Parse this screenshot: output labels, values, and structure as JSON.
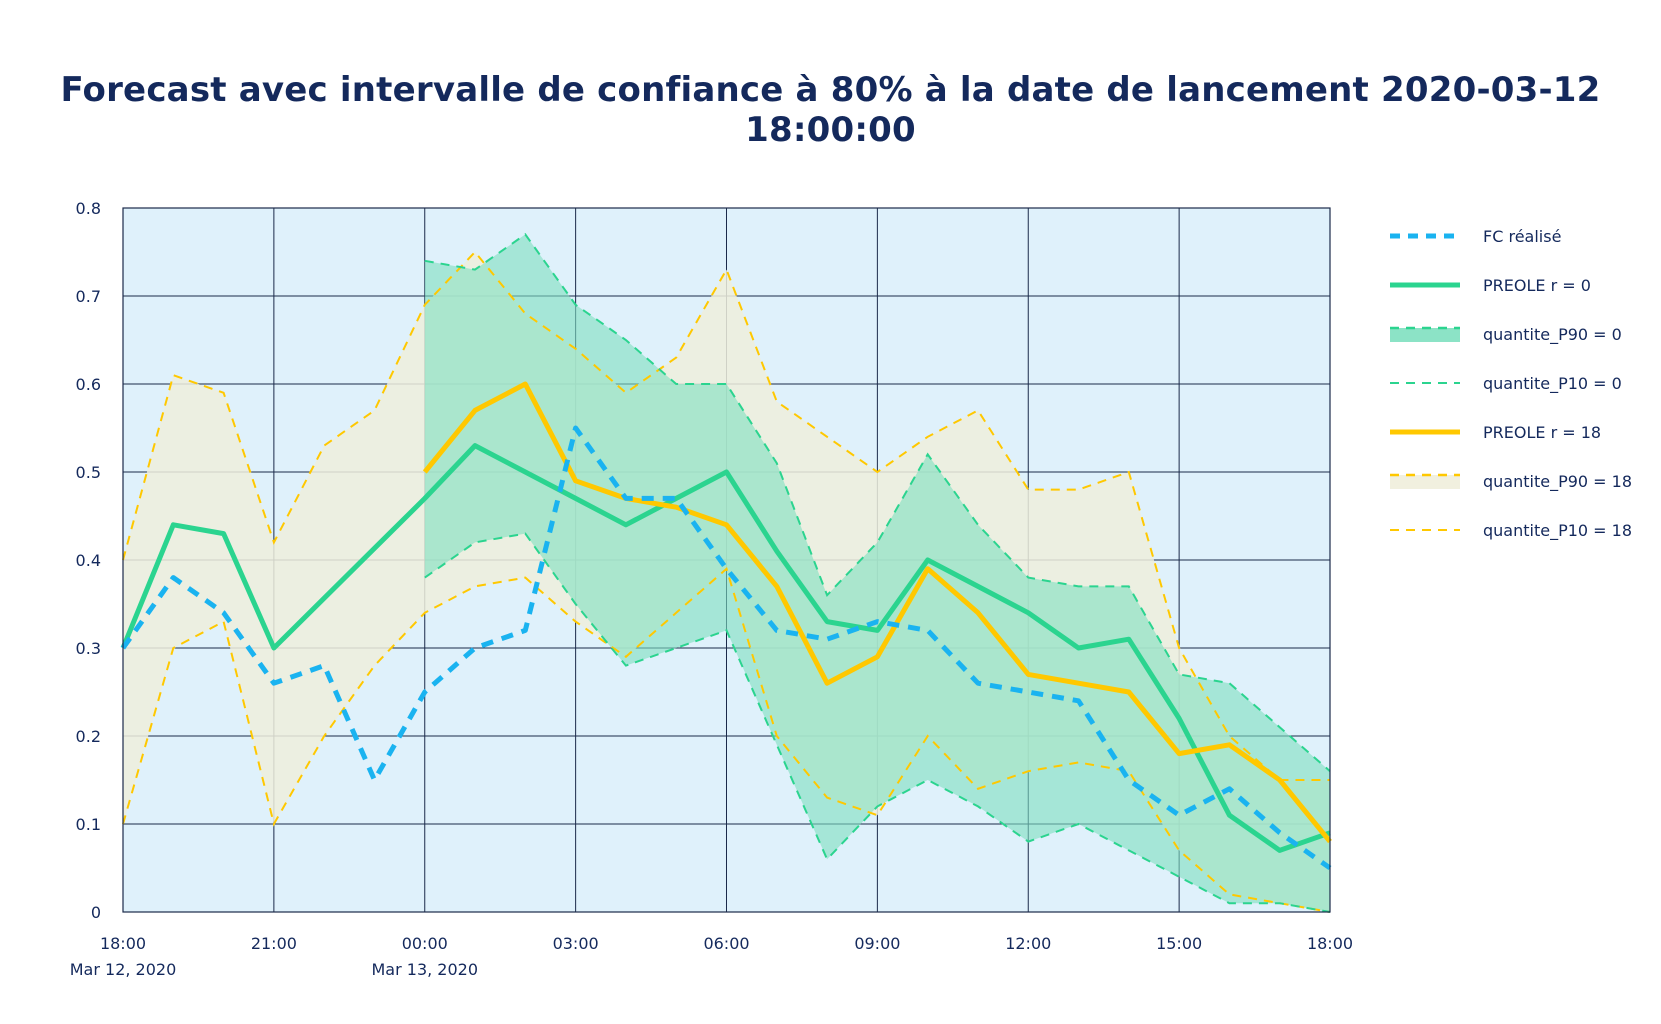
{
  "chart_data": {
    "type": "line",
    "title": "Forecast avec intervalle de confiance à 80% à la date de lancement 2020-03-12 18:00:00",
    "ylim": [
      0,
      0.8
    ],
    "yticks": [
      0,
      0.1,
      0.2,
      0.3,
      0.4,
      0.5,
      0.6,
      0.7,
      0.8
    ],
    "ytick_labels": [
      "0",
      "0.1",
      "0.2",
      "0.3",
      "0.4",
      "0.5",
      "0.6",
      "0.7",
      "0.8"
    ],
    "xlim": [
      "2020-03-12 18:00",
      "2020-03-13 18:00"
    ],
    "xticks": [
      {
        "t": "2020-03-12 18:00",
        "line1": "18:00",
        "line2": "Mar 12, 2020"
      },
      {
        "t": "2020-03-12 21:00",
        "line1": "21:00",
        "line2": ""
      },
      {
        "t": "2020-03-13 00:00",
        "line1": "00:00",
        "line2": "Mar 13, 2020"
      },
      {
        "t": "2020-03-13 03:00",
        "line1": "03:00",
        "line2": ""
      },
      {
        "t": "2020-03-13 06:00",
        "line1": "06:00",
        "line2": ""
      },
      {
        "t": "2020-03-13 09:00",
        "line1": "09:00",
        "line2": ""
      },
      {
        "t": "2020-03-13 12:00",
        "line1": "12:00",
        "line2": ""
      },
      {
        "t": "2020-03-13 15:00",
        "line1": "15:00",
        "line2": ""
      },
      {
        "t": "2020-03-13 18:00",
        "line1": "18:00",
        "line2": ""
      }
    ],
    "grid": true,
    "legend_position": "right",
    "colors": {
      "plot_bg": "#dff1fb",
      "grid": "#1b2a4a",
      "fc": "#1ab3f0",
      "preole0": "#2bd48f",
      "band0": "#7fe0c0",
      "preole18": "#ffc800",
      "band18": "#efeedc"
    },
    "series": [
      {
        "name": "FC réalisé",
        "key": "fc",
        "x": [
          "2020-03-12 18:00",
          "2020-03-12 19:00",
          "2020-03-12 20:00",
          "2020-03-12 21:00",
          "2020-03-12 22:00",
          "2020-03-12 23:00",
          "2020-03-13 00:00",
          "2020-03-13 01:00",
          "2020-03-13 02:00",
          "2020-03-13 03:00",
          "2020-03-13 04:00",
          "2020-03-13 05:00",
          "2020-03-13 06:00",
          "2020-03-13 07:00",
          "2020-03-13 08:00",
          "2020-03-13 09:00",
          "2020-03-13 10:00",
          "2020-03-13 11:00",
          "2020-03-13 12:00",
          "2020-03-13 13:00",
          "2020-03-13 14:00",
          "2020-03-13 15:00",
          "2020-03-13 16:00",
          "2020-03-13 17:00",
          "2020-03-13 18:00"
        ],
        "values": [
          0.3,
          0.38,
          0.34,
          0.26,
          0.28,
          0.15,
          0.25,
          0.3,
          0.32,
          0.55,
          0.47,
          0.47,
          0.39,
          0.32,
          0.31,
          0.33,
          0.32,
          0.26,
          0.25,
          0.24,
          0.15,
          0.11,
          0.14,
          0.09,
          0.05
        ]
      },
      {
        "name": "PREOLE r = 0",
        "key": "preole0",
        "x": [
          "2020-03-12 18:00",
          "2020-03-12 19:00",
          "2020-03-12 20:00",
          "2020-03-12 21:00",
          "2020-03-13 00:00",
          "2020-03-13 01:00",
          "2020-03-13 02:00",
          "2020-03-13 03:00",
          "2020-03-13 04:00",
          "2020-03-13 05:00",
          "2020-03-13 06:00",
          "2020-03-13 07:00",
          "2020-03-13 08:00",
          "2020-03-13 09:00",
          "2020-03-13 10:00",
          "2020-03-13 11:00",
          "2020-03-13 12:00",
          "2020-03-13 13:00",
          "2020-03-13 14:00",
          "2020-03-13 15:00",
          "2020-03-13 16:00",
          "2020-03-13 17:00",
          "2020-03-13 18:00"
        ],
        "values": [
          0.3,
          0.44,
          0.43,
          0.3,
          0.47,
          0.53,
          0.5,
          0.47,
          0.44,
          0.47,
          0.5,
          0.41,
          0.33,
          0.32,
          0.4,
          0.37,
          0.34,
          0.3,
          0.31,
          0.22,
          0.11,
          0.07,
          0.09
        ]
      },
      {
        "name": "quantite_P90 = 0",
        "key": "p90_0",
        "x": [
          "2020-03-13 00:00",
          "2020-03-13 01:00",
          "2020-03-13 02:00",
          "2020-03-13 03:00",
          "2020-03-13 04:00",
          "2020-03-13 05:00",
          "2020-03-13 06:00",
          "2020-03-13 07:00",
          "2020-03-13 08:00",
          "2020-03-13 09:00",
          "2020-03-13 10:00",
          "2020-03-13 11:00",
          "2020-03-13 12:00",
          "2020-03-13 13:00",
          "2020-03-13 14:00",
          "2020-03-13 15:00",
          "2020-03-13 16:00",
          "2020-03-13 17:00",
          "2020-03-13 18:00"
        ],
        "values": [
          0.74,
          0.73,
          0.77,
          0.69,
          0.65,
          0.6,
          0.6,
          0.51,
          0.36,
          0.42,
          0.52,
          0.44,
          0.38,
          0.37,
          0.37,
          0.27,
          0.26,
          0.21,
          0.16
        ]
      },
      {
        "name": "quantite_P10 = 0",
        "key": "p10_0",
        "x": [
          "2020-03-13 00:00",
          "2020-03-13 01:00",
          "2020-03-13 02:00",
          "2020-03-13 03:00",
          "2020-03-13 04:00",
          "2020-03-13 05:00",
          "2020-03-13 06:00",
          "2020-03-13 07:00",
          "2020-03-13 08:00",
          "2020-03-13 09:00",
          "2020-03-13 10:00",
          "2020-03-13 11:00",
          "2020-03-13 12:00",
          "2020-03-13 13:00",
          "2020-03-13 14:00",
          "2020-03-13 15:00",
          "2020-03-13 16:00",
          "2020-03-13 17:00",
          "2020-03-13 18:00"
        ],
        "values": [
          0.38,
          0.42,
          0.43,
          0.35,
          0.28,
          0.3,
          0.32,
          0.19,
          0.06,
          0.12,
          0.15,
          0.12,
          0.08,
          0.1,
          0.07,
          0.04,
          0.01,
          0.01,
          0.0
        ]
      },
      {
        "name": "PREOLE r = 18",
        "key": "preole18",
        "x": [
          "2020-03-13 00:00",
          "2020-03-13 01:00",
          "2020-03-13 02:00",
          "2020-03-13 03:00",
          "2020-03-13 04:00",
          "2020-03-13 05:00",
          "2020-03-13 06:00",
          "2020-03-13 07:00",
          "2020-03-13 08:00",
          "2020-03-13 09:00",
          "2020-03-13 10:00",
          "2020-03-13 11:00",
          "2020-03-13 12:00",
          "2020-03-13 13:00",
          "2020-03-13 14:00",
          "2020-03-13 15:00",
          "2020-03-13 16:00",
          "2020-03-13 17:00",
          "2020-03-13 18:00"
        ],
        "values": [
          0.5,
          0.57,
          0.6,
          0.49,
          0.47,
          0.46,
          0.44,
          0.37,
          0.26,
          0.29,
          0.39,
          0.34,
          0.27,
          0.26,
          0.25,
          0.18,
          0.19,
          0.15,
          0.08
        ]
      },
      {
        "name": "quantite_P90 = 18",
        "key": "p90_18",
        "x": [
          "2020-03-12 18:00",
          "2020-03-12 19:00",
          "2020-03-12 20:00",
          "2020-03-12 21:00",
          "2020-03-12 22:00",
          "2020-03-12 23:00",
          "2020-03-13 00:00",
          "2020-03-13 01:00",
          "2020-03-13 02:00",
          "2020-03-13 03:00",
          "2020-03-13 04:00",
          "2020-03-13 05:00",
          "2020-03-13 06:00",
          "2020-03-13 07:00",
          "2020-03-13 08:00",
          "2020-03-13 09:00",
          "2020-03-13 10:00",
          "2020-03-13 11:00",
          "2020-03-13 12:00",
          "2020-03-13 13:00",
          "2020-03-13 14:00",
          "2020-03-13 15:00",
          "2020-03-13 16:00",
          "2020-03-13 17:00",
          "2020-03-13 18:00"
        ],
        "values": [
          0.4,
          0.61,
          0.59,
          0.42,
          0.53,
          0.57,
          0.69,
          0.75,
          0.68,
          0.64,
          0.59,
          0.63,
          0.73,
          0.58,
          0.54,
          0.5,
          0.54,
          0.57,
          0.48,
          0.48,
          0.5,
          0.3,
          0.2,
          0.15,
          0.15
        ]
      },
      {
        "name": "quantite_P10 = 18",
        "key": "p10_18",
        "x": [
          "2020-03-12 18:00",
          "2020-03-12 19:00",
          "2020-03-12 20:00",
          "2020-03-12 21:00",
          "2020-03-12 22:00",
          "2020-03-12 23:00",
          "2020-03-13 00:00",
          "2020-03-13 01:00",
          "2020-03-13 02:00",
          "2020-03-13 03:00",
          "2020-03-13 04:00",
          "2020-03-13 05:00",
          "2020-03-13 06:00",
          "2020-03-13 07:00",
          "2020-03-13 08:00",
          "2020-03-13 09:00",
          "2020-03-13 10:00",
          "2020-03-13 11:00",
          "2020-03-13 12:00",
          "2020-03-13 13:00",
          "2020-03-13 14:00",
          "2020-03-13 15:00",
          "2020-03-13 16:00",
          "2020-03-13 17:00",
          "2020-03-13 18:00"
        ],
        "values": [
          0.1,
          0.3,
          0.33,
          0.1,
          0.2,
          0.28,
          0.34,
          0.37,
          0.38,
          0.33,
          0.29,
          0.34,
          0.39,
          0.2,
          0.13,
          0.11,
          0.2,
          0.14,
          0.16,
          0.17,
          0.16,
          0.07,
          0.02,
          0.01,
          0.0
        ]
      }
    ],
    "legend": [
      {
        "label": "FC réalisé",
        "key": "fc",
        "style": "dotted"
      },
      {
        "label": "PREOLE r = 0",
        "key": "preole0",
        "style": "solid"
      },
      {
        "label": "quantite_P90 = 0",
        "key": "p90_0",
        "style": "band"
      },
      {
        "label": "quantite_P10 = 0",
        "key": "p10_0",
        "style": "dashed"
      },
      {
        "label": "PREOLE r = 18",
        "key": "preole18",
        "style": "solid"
      },
      {
        "label": "quantite_P90 = 18",
        "key": "p90_18",
        "style": "band"
      },
      {
        "label": "quantite_P10 = 18",
        "key": "p10_18",
        "style": "dashed"
      }
    ]
  }
}
